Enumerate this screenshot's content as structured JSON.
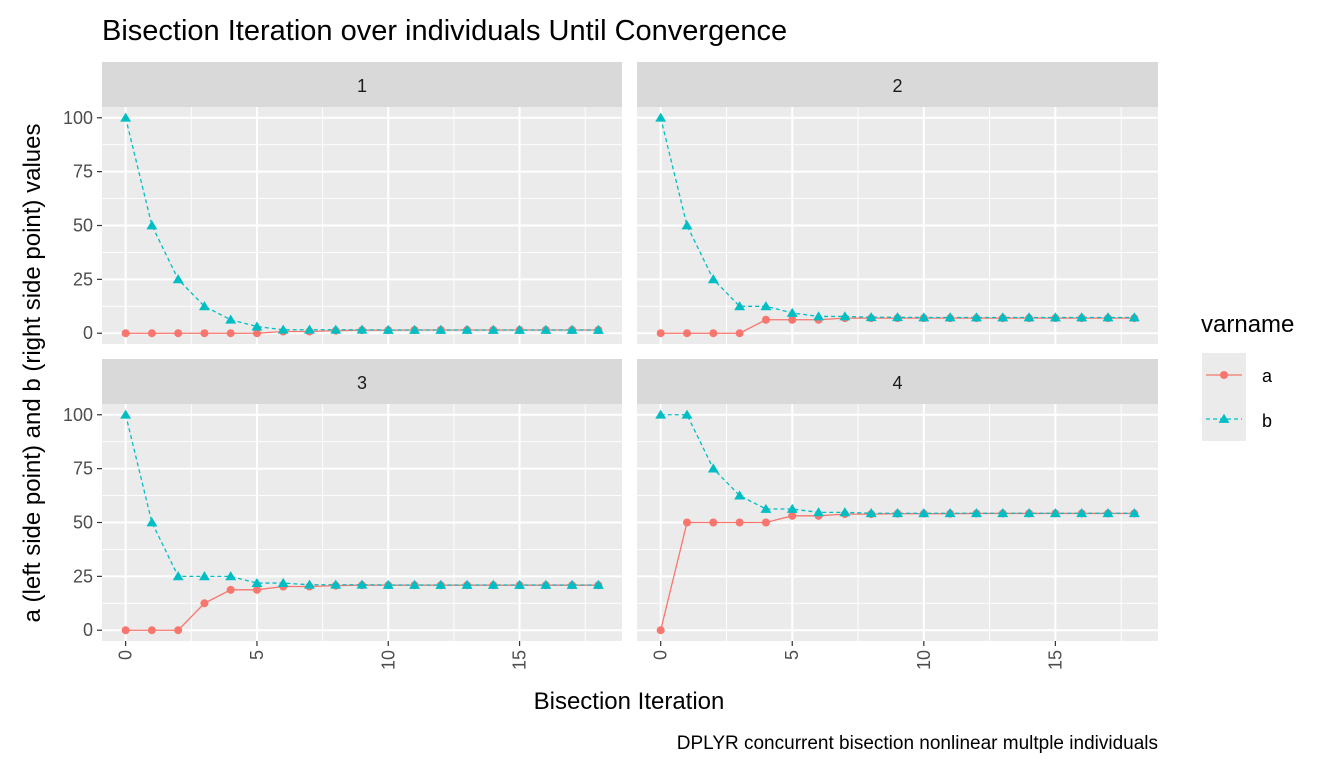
{
  "chart_data": {
    "type": "line",
    "title": "Bisection Iteration over individuals Until Convergence",
    "xlabel": "Bisection Iteration",
    "ylabel": "a (left side point) and b (right side point) values",
    "caption": "DPLYR concurrent bisection nonlinear multple individuals",
    "xlim": [
      -0.9,
      18.9
    ],
    "ylim": [
      -5,
      105
    ],
    "x_ticks": [
      0,
      5,
      10,
      15
    ],
    "y_ticks": [
      0,
      25,
      50,
      75,
      100
    ],
    "x_tick_labels": [
      "0",
      "5",
      "10",
      "15"
    ],
    "y_tick_labels": [
      "0",
      "25",
      "50",
      "75",
      "100"
    ],
    "grid": true,
    "legend": {
      "title": "varname",
      "position": "right",
      "entries": [
        {
          "label": "a",
          "color": "#F8766D",
          "marker": "circle",
          "linestyle": "solid"
        },
        {
          "label": "b",
          "color": "#00BFC4",
          "marker": "triangle",
          "linestyle": "dashed"
        }
      ]
    },
    "x": [
      0,
      1,
      2,
      3,
      4,
      5,
      6,
      7,
      8,
      9,
      10,
      11,
      12,
      13,
      14,
      15,
      16,
      17,
      18
    ],
    "panels": [
      {
        "label": "1",
        "series": [
          {
            "name": "a",
            "values": [
              0,
              0,
              0,
              0,
              0,
              0,
              0.8,
              0.8,
              1.2,
              1.4,
              1.4,
              1.5,
              1.5,
              1.5,
              1.5,
              1.5,
              1.5,
              1.5,
              1.5
            ]
          },
          {
            "name": "b",
            "values": [
              100,
              50,
              25,
              12.5,
              6.25,
              3.1,
              1.6,
              1.6,
              1.6,
              1.6,
              1.5,
              1.5,
              1.5,
              1.5,
              1.5,
              1.5,
              1.5,
              1.5,
              1.5
            ]
          }
        ]
      },
      {
        "label": "2",
        "series": [
          {
            "name": "a",
            "values": [
              0,
              0,
              0,
              0,
              6.25,
              6.25,
              6.25,
              7.0,
              7.0,
              7.0,
              7.0,
              7.0,
              7.0,
              7.0,
              7.0,
              7.0,
              7.0,
              7.0,
              7.0
            ]
          },
          {
            "name": "b",
            "values": [
              100,
              50,
              25,
              12.5,
              12.5,
              9.4,
              7.8,
              7.8,
              7.4,
              7.4,
              7.3,
              7.3,
              7.3,
              7.3,
              7.3,
              7.3,
              7.3,
              7.3,
              7.3
            ]
          }
        ]
      },
      {
        "label": "3",
        "series": [
          {
            "name": "a",
            "values": [
              0,
              0,
              0,
              12.5,
              18.75,
              18.75,
              20.3,
              20.3,
              20.7,
              20.9,
              20.9,
              20.9,
              20.9,
              20.9,
              20.9,
              20.9,
              20.9,
              20.9,
              20.9
            ]
          },
          {
            "name": "b",
            "values": [
              100,
              50,
              25,
              25,
              25,
              21.9,
              21.9,
              21.1,
              21.1,
              21.1,
              21.0,
              21.0,
              21.0,
              21.0,
              21.0,
              21.0,
              21.0,
              21.0,
              21.0
            ]
          }
        ]
      },
      {
        "label": "4",
        "series": [
          {
            "name": "a",
            "values": [
              0,
              50,
              50,
              50,
              50,
              53.1,
              53.1,
              53.9,
              53.9,
              54.1,
              54.1,
              54.1,
              54.2,
              54.2,
              54.2,
              54.2,
              54.2,
              54.2,
              54.2
            ]
          },
          {
            "name": "b",
            "values": [
              100,
              100,
              75,
              62.5,
              56.25,
              56.25,
              54.7,
              54.7,
              54.3,
              54.3,
              54.3,
              54.3,
              54.3,
              54.3,
              54.3,
              54.3,
              54.3,
              54.3,
              54.3
            ]
          }
        ]
      }
    ]
  }
}
